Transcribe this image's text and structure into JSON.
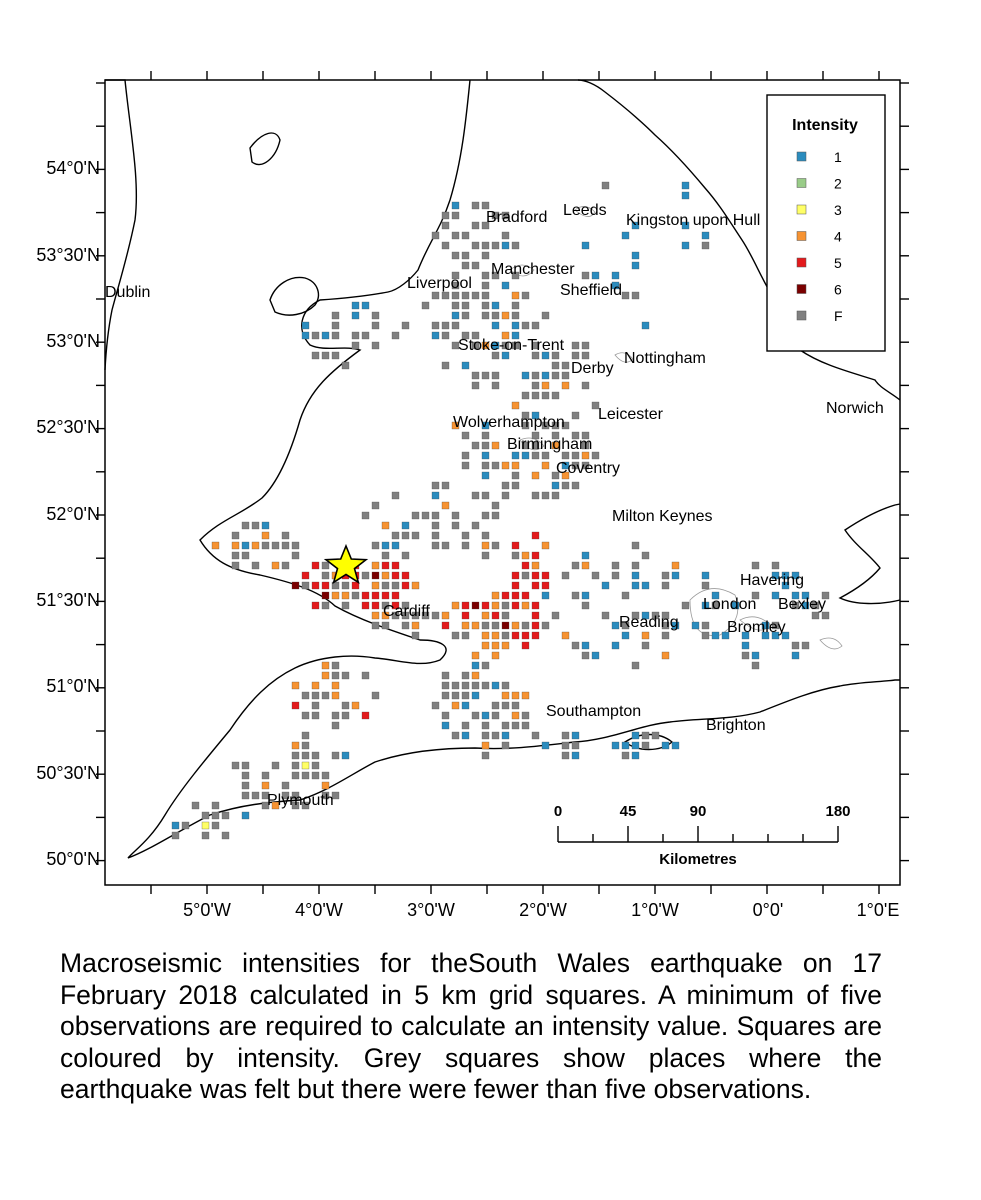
{
  "map": {
    "lat_labels": [
      "54°0'N",
      "53°30'N",
      "53°0'N",
      "52°30'N",
      "52°0'N",
      "51°30'N",
      "51°0'N",
      "50°30'N",
      "50°0'N"
    ],
    "lon_labels": [
      "5°0'W",
      "4°0'W",
      "3°0'W",
      "2°0'W",
      "1°0'W",
      "0°0'",
      "1°0'E"
    ],
    "places": [
      "Dublin",
      "Liverpool",
      "Manchester",
      "Bradford",
      "Leeds",
      "Kingston upon Hull",
      "Sheffield",
      "Stoke-on-Trent",
      "Nottingham",
      "Derby",
      "Norwich",
      "Leicester",
      "Wolverhampton",
      "Birmingham",
      "Coventry",
      "Milton Keynes",
      "Havering",
      "London",
      "Bexley",
      "Cardiff",
      "Reading",
      "Bromley",
      "Southampton",
      "Brighton",
      "Plymouth"
    ],
    "epicentre_icon": "star-icon"
  },
  "legend": {
    "title": "Intensity",
    "items": [
      {
        "label": "1",
        "color": "#2b8cbe"
      },
      {
        "label": "2",
        "color": "#99cc88"
      },
      {
        "label": "3",
        "color": "#ffff66"
      },
      {
        "label": "4",
        "color": "#f79332"
      },
      {
        "label": "5",
        "color": "#e31a1c"
      },
      {
        "label": "6",
        "color": "#7a0000"
      },
      {
        "label": "F",
        "color": "#808080"
      }
    ]
  },
  "scalebar": {
    "ticks": [
      "0",
      "45",
      "90",
      "180"
    ],
    "unit": "Kilometres"
  },
  "caption": "Macroseismic intensities for theSouth Wales earthquake on 17 February 2018 calculated in 5 km grid squares. A minimum of five observations are required to calculate an intensity value. Squares are coloured by intensity. Grey squares show places where the earthquake was felt but there were fewer than five observations."
}
